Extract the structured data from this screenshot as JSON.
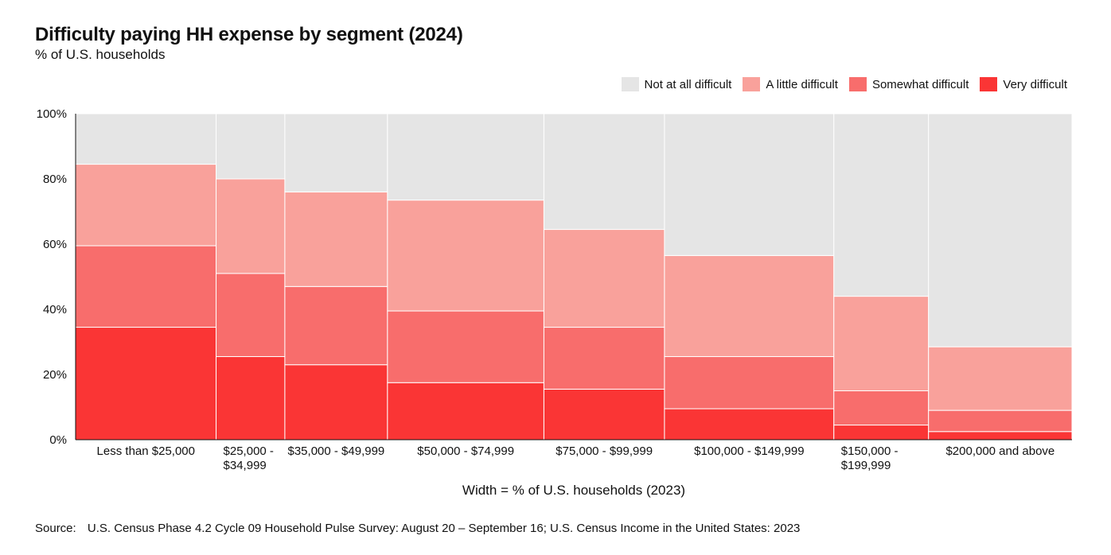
{
  "title": "Difficulty paying HH expense by segment (2024)",
  "subtitle": "% of U.S. households",
  "legend": [
    {
      "label": "Not at all difficult",
      "color": "#e5e5e5"
    },
    {
      "label": "A little difficult",
      "color": "#f9a19b"
    },
    {
      "label": "Somewhat difficult",
      "color": "#f86d6c"
    },
    {
      "label": "Very difficult",
      "color": "#fa3535"
    }
  ],
  "source": {
    "label": "Source:",
    "text": "U.S. Census Phase 4.2 Cycle 09 Household Pulse Survey: August 20 – September 16; U.S. Census Income in the United States: 2023"
  },
  "chart_data": {
    "type": "mekko",
    "title": "Difficulty paying HH expense by segment (2024)",
    "subtitle": "% of U.S. households",
    "xlabel": "Width = % of U.S. households (2023)",
    "ylabel": "",
    "ylim": [
      0,
      100
    ],
    "y_ticks": [
      "0%",
      "20%",
      "40%",
      "60%",
      "80%",
      "100%"
    ],
    "categories": [
      "Less than $25,000",
      "$25,000 - $34,999",
      "$35,000 - $49,999",
      "$50,000 - $74,999",
      "$75,000 - $99,999",
      "$100,000 - $149,999",
      "$150,000 - $199,999",
      "$200,000 and above"
    ],
    "category_labels": [
      [
        "Less than $25,000"
      ],
      [
        "$25,000 -",
        "$34,999"
      ],
      [
        "$35,000 - $49,999"
      ],
      [
        "$50,000 - $74,999"
      ],
      [
        "$75,000 - $99,999"
      ],
      [
        "$100,000 - $149,999"
      ],
      [
        "$150,000 -",
        "$199,999"
      ],
      [
        "$200,000 and above"
      ]
    ],
    "widths": [
      14.1,
      6.9,
      10.3,
      15.7,
      12.1,
      17.0,
      9.5,
      14.4
    ],
    "series": [
      {
        "name": "Very difficult",
        "color": "#fa3535",
        "values": [
          34.5,
          25.5,
          23.0,
          17.5,
          15.5,
          9.5,
          4.5,
          2.5
        ]
      },
      {
        "name": "Somewhat difficult",
        "color": "#f86d6c",
        "values": [
          25.0,
          25.5,
          24.0,
          22.0,
          19.0,
          16.0,
          10.5,
          6.5
        ]
      },
      {
        "name": "A little difficult",
        "color": "#f9a19b",
        "values": [
          25.0,
          29.0,
          29.0,
          34.0,
          30.0,
          31.0,
          29.0,
          19.5
        ]
      },
      {
        "name": "Not at all difficult",
        "color": "#e5e5e5",
        "values": [
          15.5,
          20.0,
          24.0,
          26.5,
          35.5,
          43.5,
          56.0,
          71.5
        ]
      }
    ],
    "grid": false,
    "legend_position": "top-right"
  }
}
